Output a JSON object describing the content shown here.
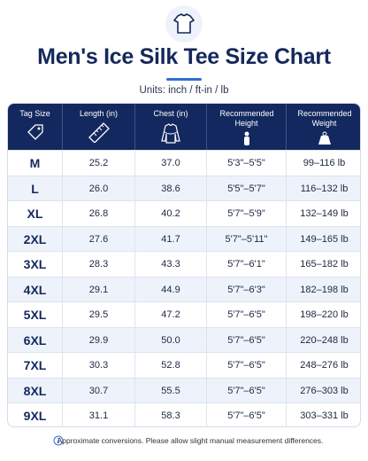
{
  "header": {
    "title": "Men's Ice Silk Tee Size Chart",
    "subtitle": "Units: inch / ft-in / lb"
  },
  "table": {
    "columns": [
      "Tag Size",
      "Length (in)",
      "Chest (in)",
      "Recommended Height",
      "Recommended Weight"
    ],
    "rows": [
      [
        "M",
        "25.2",
        "37.0",
        "5'3\"–5'5\"",
        "99–116 lb"
      ],
      [
        "L",
        "26.0",
        "38.6",
        "5'5\"–5'7\"",
        "116–132 lb"
      ],
      [
        "XL",
        "26.8",
        "40.2",
        "5'7\"–5'9\"",
        "132–149 lb"
      ],
      [
        "2XL",
        "27.6",
        "41.7",
        "5'7\"–5'11\"",
        "149–165 lb"
      ],
      [
        "3XL",
        "28.3",
        "43.3",
        "5'7\"–6'1\"",
        "165–182 lb"
      ],
      [
        "4XL",
        "29.1",
        "44.9",
        "5'7\"–6'3\"",
        "182–198 lb"
      ],
      [
        "5XL",
        "29.5",
        "47.2",
        "5'7\"–6'5\"",
        "198–220 lb"
      ],
      [
        "6XL",
        "29.9",
        "50.0",
        "5'7\"–6'5\"",
        "220–248 lb"
      ],
      [
        "7XL",
        "30.3",
        "52.8",
        "5'7\"–6'5\"",
        "248–276 lb"
      ],
      [
        "8XL",
        "30.7",
        "55.5",
        "5'7\"–6'5\"",
        "276–303 lb"
      ],
      [
        "9XL",
        "31.1",
        "58.3",
        "5'7\"–6'5\"",
        "303–331 lb"
      ]
    ]
  },
  "footer": {
    "note": "Approximate conversions. Please allow slight manual measurement differences."
  }
}
